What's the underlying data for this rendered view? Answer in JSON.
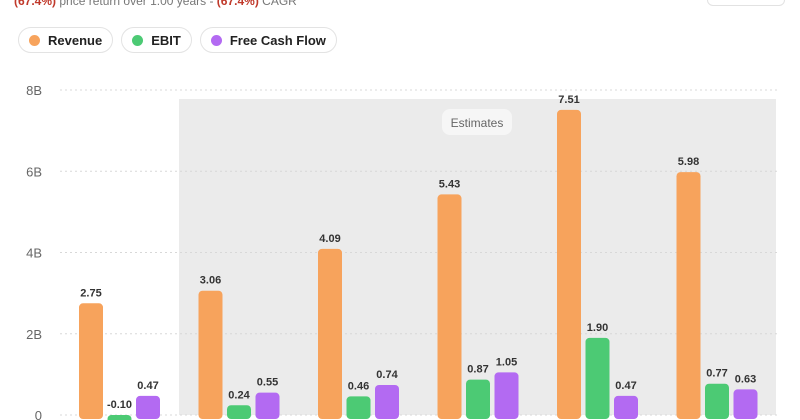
{
  "header": {
    "price_return_pct": "(67.4%)",
    "price_return_text": "price return over 1.00 years -",
    "cagr_pct": "(67.4%)",
    "cagr_text": "CAGR"
  },
  "legend": [
    {
      "label": "Revenue",
      "color": "#f7a35c"
    },
    {
      "label": "EBIT",
      "color": "#4cca74"
    },
    {
      "label": "Free Cash Flow",
      "color": "#b36af2"
    }
  ],
  "chart_data": {
    "type": "bar",
    "yticks": [
      "0",
      "2B",
      "4B",
      "6B",
      "8B"
    ],
    "ylim": [
      0,
      8
    ],
    "estimates_label": "Estimates",
    "estimates_from_index": 1,
    "series": [
      {
        "name": "Revenue",
        "color": "#f7a35c",
        "values": [
          2.75,
          3.06,
          4.09,
          5.43,
          7.51,
          5.98
        ],
        "labels": [
          "2.75",
          "3.06",
          "4.09",
          "5.43",
          "7.51",
          "5.98"
        ]
      },
      {
        "name": "EBIT",
        "color": "#4cca74",
        "values": [
          -0.1,
          0.24,
          0.46,
          0.87,
          1.9,
          0.77
        ],
        "labels": [
          "-0.10",
          "0.24",
          "0.46",
          "0.87",
          "1.90",
          "0.77"
        ]
      },
      {
        "name": "Free Cash Flow",
        "color": "#b36af2",
        "values": [
          0.47,
          0.55,
          0.74,
          1.05,
          0.47,
          0.63
        ],
        "labels": [
          "0.47",
          "0.55",
          "0.74",
          "1.05",
          "0.47",
          "0.63"
        ]
      }
    ]
  }
}
